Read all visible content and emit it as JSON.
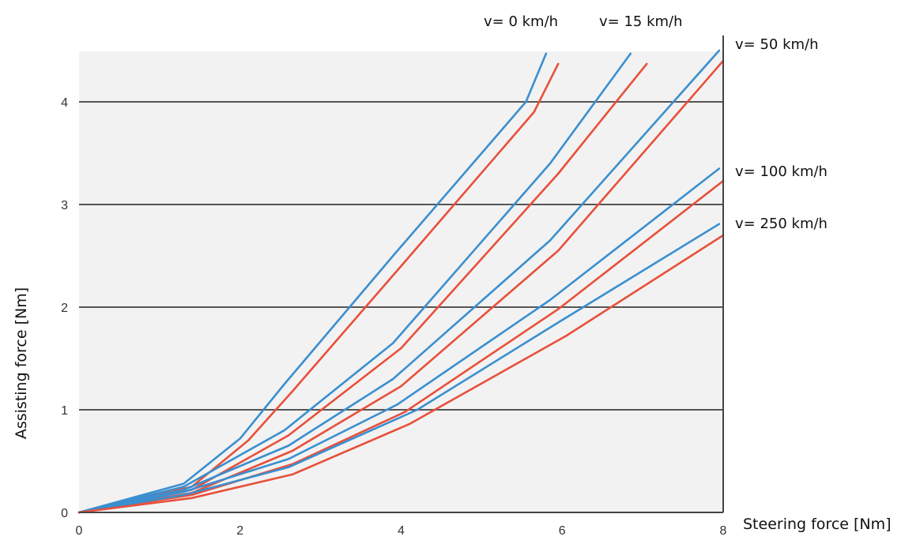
{
  "chart_data": {
    "type": "line",
    "title": "",
    "xlabel": "Steering force [Nm]",
    "ylabel": "Assisting force [Nm]",
    "xlim": [
      0,
      8
    ],
    "ylim": [
      0,
      4.5
    ],
    "x_ticks": [
      "0",
      "2",
      "4",
      "6",
      "8"
    ],
    "y_ticks": [
      "0",
      "1",
      "2",
      "3",
      "4"
    ],
    "grid": "horizontal",
    "colors": {
      "upper": "#3a8fd0",
      "lower": "#e8503a",
      "grid": "#555555",
      "plot_bg": "#f2f2f2"
    },
    "speed_labels": [
      "v= 0 km/h",
      "v= 15 km/h",
      "v= 50 km/h",
      "v= 100 km/h",
      "v= 250 km/h"
    ],
    "series": [
      {
        "color": "upper",
        "points": [
          [
            0,
            0
          ],
          [
            1.3,
            0.28
          ],
          [
            2.0,
            0.72
          ],
          [
            2.55,
            1.25
          ],
          [
            3.9,
            2.5
          ],
          [
            5.55,
            4.0
          ],
          [
            5.8,
            4.47
          ]
        ]
      },
      {
        "color": "lower",
        "points": [
          [
            0,
            0
          ],
          [
            1.4,
            0.25
          ],
          [
            2.1,
            0.7
          ],
          [
            2.65,
            1.18
          ],
          [
            4.0,
            2.4
          ],
          [
            5.65,
            3.9
          ],
          [
            5.95,
            4.37
          ]
        ]
      },
      {
        "color": "upper",
        "points": [
          [
            0,
            0
          ],
          [
            1.3,
            0.25
          ],
          [
            2.55,
            0.8
          ],
          [
            3.9,
            1.65
          ],
          [
            5.85,
            3.4
          ],
          [
            6.85,
            4.47
          ]
        ]
      },
      {
        "color": "lower",
        "points": [
          [
            0,
            0
          ],
          [
            1.4,
            0.22
          ],
          [
            2.6,
            0.75
          ],
          [
            4.0,
            1.6
          ],
          [
            5.95,
            3.3
          ],
          [
            7.05,
            4.37
          ]
        ]
      },
      {
        "color": "upper",
        "points": [
          [
            0,
            0
          ],
          [
            1.3,
            0.22
          ],
          [
            2.6,
            0.65
          ],
          [
            3.9,
            1.3
          ],
          [
            5.85,
            2.65
          ],
          [
            7.95,
            4.5
          ]
        ]
      },
      {
        "color": "lower",
        "points": [
          [
            0,
            0
          ],
          [
            1.4,
            0.19
          ],
          [
            2.65,
            0.6
          ],
          [
            4.0,
            1.23
          ],
          [
            5.95,
            2.55
          ],
          [
            8.0,
            4.4
          ]
        ]
      },
      {
        "color": "upper",
        "points": [
          [
            0,
            0
          ],
          [
            1.3,
            0.2
          ],
          [
            2.6,
            0.52
          ],
          [
            3.95,
            1.05
          ],
          [
            5.85,
            2.07
          ],
          [
            7.95,
            3.35
          ]
        ]
      },
      {
        "color": "lower",
        "points": [
          [
            0,
            0
          ],
          [
            1.4,
            0.17
          ],
          [
            2.65,
            0.47
          ],
          [
            4.05,
            0.98
          ],
          [
            5.95,
            1.98
          ],
          [
            8.0,
            3.23
          ]
        ]
      },
      {
        "color": "upper",
        "points": [
          [
            0,
            0
          ],
          [
            1.3,
            0.17
          ],
          [
            2.6,
            0.44
          ],
          [
            4.2,
            1.0
          ],
          [
            5.95,
            1.85
          ],
          [
            7.95,
            2.81
          ]
        ]
      },
      {
        "color": "lower",
        "points": [
          [
            0,
            0
          ],
          [
            1.4,
            0.14
          ],
          [
            2.65,
            0.37
          ],
          [
            4.1,
            0.86
          ],
          [
            6.05,
            1.72
          ],
          [
            8.0,
            2.7
          ]
        ]
      }
    ]
  }
}
